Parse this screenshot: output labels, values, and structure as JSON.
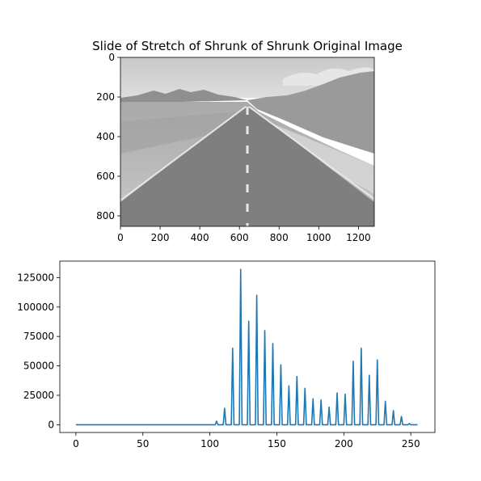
{
  "colors": {
    "background": "#ffffff",
    "axes": "#000000",
    "line": "#1f77b4",
    "sky": "#d4d4d4",
    "mountain": "#9a9a9a",
    "desert": "#bdbdbd",
    "road": "#8a8a8a",
    "road_marking": "#e8e8e8"
  },
  "chart_data": [
    {
      "type": "image",
      "title": "Slide of Stretch of Shrunk of Shrunk Original Image",
      "image_width": 1280,
      "image_height": 853,
      "xlim": [
        0,
        1280
      ],
      "ylim": [
        853,
        0
      ],
      "x_ticks": [
        0,
        200,
        400,
        600,
        800,
        1000,
        1200
      ],
      "y_ticks": [
        0,
        200,
        400,
        600,
        800
      ],
      "x_tick_labels": [
        "0",
        "200",
        "400",
        "600",
        "800",
        "1000",
        "1200"
      ],
      "y_tick_labels": [
        "0",
        "200",
        "400",
        "600",
        "800"
      ],
      "image_content": "grayscale-desert-road"
    },
    {
      "type": "line",
      "title": "",
      "xlabel": "",
      "ylabel": "",
      "xlim": [
        -12,
        268
      ],
      "ylim": [
        -6600,
        139000
      ],
      "x_ticks": [
        0,
        50,
        100,
        150,
        200,
        250
      ],
      "y_ticks": [
        0,
        25000,
        50000,
        75000,
        100000,
        125000
      ],
      "x_tick_labels": [
        "0",
        "50",
        "100",
        "150",
        "200",
        "250"
      ],
      "y_tick_labels": [
        "0",
        "25000",
        "50000",
        "75000",
        "100000",
        "125000"
      ],
      "peaks": [
        {
          "x": 105,
          "y": 3000
        },
        {
          "x": 111,
          "y": 14000
        },
        {
          "x": 117,
          "y": 65000
        },
        {
          "x": 123,
          "y": 132000
        },
        {
          "x": 129,
          "y": 88000
        },
        {
          "x": 135,
          "y": 110000
        },
        {
          "x": 141,
          "y": 80000
        },
        {
          "x": 147,
          "y": 69000
        },
        {
          "x": 153,
          "y": 51000
        },
        {
          "x": 159,
          "y": 33000
        },
        {
          "x": 165,
          "y": 41000
        },
        {
          "x": 171,
          "y": 31000
        },
        {
          "x": 177,
          "y": 22000
        },
        {
          "x": 183,
          "y": 21000
        },
        {
          "x": 189,
          "y": 15000
        },
        {
          "x": 195,
          "y": 27000
        },
        {
          "x": 201,
          "y": 26000
        },
        {
          "x": 207,
          "y": 54000
        },
        {
          "x": 213,
          "y": 65000
        },
        {
          "x": 219,
          "y": 42000
        },
        {
          "x": 225,
          "y": 55000
        },
        {
          "x": 231,
          "y": 20000
        },
        {
          "x": 237,
          "y": 12000
        },
        {
          "x": 243,
          "y": 7000
        },
        {
          "x": 249,
          "y": 1000
        }
      ],
      "x_end": 255,
      "grid": false,
      "legend": "none"
    }
  ]
}
